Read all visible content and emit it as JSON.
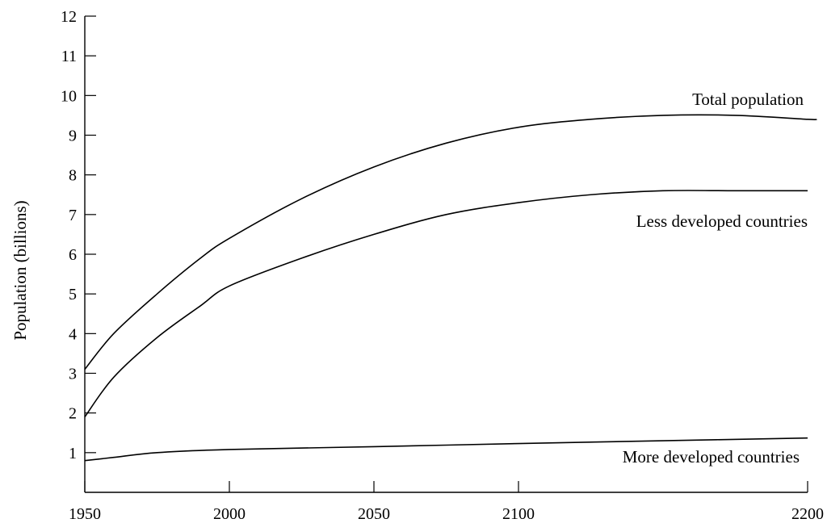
{
  "chart_data": {
    "type": "line",
    "title": "",
    "xlabel": "",
    "ylabel": "Population (billions)",
    "xlim": [
      1950,
      2200
    ],
    "ylim": [
      0,
      12
    ],
    "x_ticks": [
      1950,
      2000,
      2050,
      2100,
      2200
    ],
    "y_ticks": [
      1,
      2,
      3,
      4,
      5,
      6,
      7,
      8,
      9,
      10,
      11,
      12
    ],
    "grid": false,
    "legend": "none (series labeled directly on chart)",
    "series": [
      {
        "name": "Total population",
        "points": [
          [
            1950,
            3.1
          ],
          [
            1960,
            4.0
          ],
          [
            1975,
            5.0
          ],
          [
            1990,
            5.9
          ],
          [
            2000,
            6.4
          ],
          [
            2025,
            7.4
          ],
          [
            2050,
            8.2
          ],
          [
            2075,
            8.8
          ],
          [
            2100,
            9.2
          ],
          [
            2125,
            9.4
          ],
          [
            2150,
            9.5
          ],
          [
            2175,
            9.5
          ],
          [
            2200,
            9.4
          ],
          [
            2203,
            9.4
          ]
        ]
      },
      {
        "name": "Less developed countries",
        "points": [
          [
            1950,
            1.9
          ],
          [
            1960,
            2.9
          ],
          [
            1975,
            3.9
          ],
          [
            1990,
            4.7
          ],
          [
            2000,
            5.2
          ],
          [
            2025,
            5.9
          ],
          [
            2050,
            6.5
          ],
          [
            2075,
            7.0
          ],
          [
            2100,
            7.3
          ],
          [
            2125,
            7.5
          ],
          [
            2150,
            7.6
          ],
          [
            2175,
            7.6
          ],
          [
            2200,
            7.6
          ]
        ]
      },
      {
        "name": "More developed countries",
        "points": [
          [
            1950,
            0.8
          ],
          [
            1960,
            0.88
          ],
          [
            1975,
            1.0
          ],
          [
            2000,
            1.08
          ],
          [
            2050,
            1.15
          ],
          [
            2100,
            1.23
          ],
          [
            2150,
            1.3
          ],
          [
            2200,
            1.37
          ]
        ]
      }
    ]
  }
}
